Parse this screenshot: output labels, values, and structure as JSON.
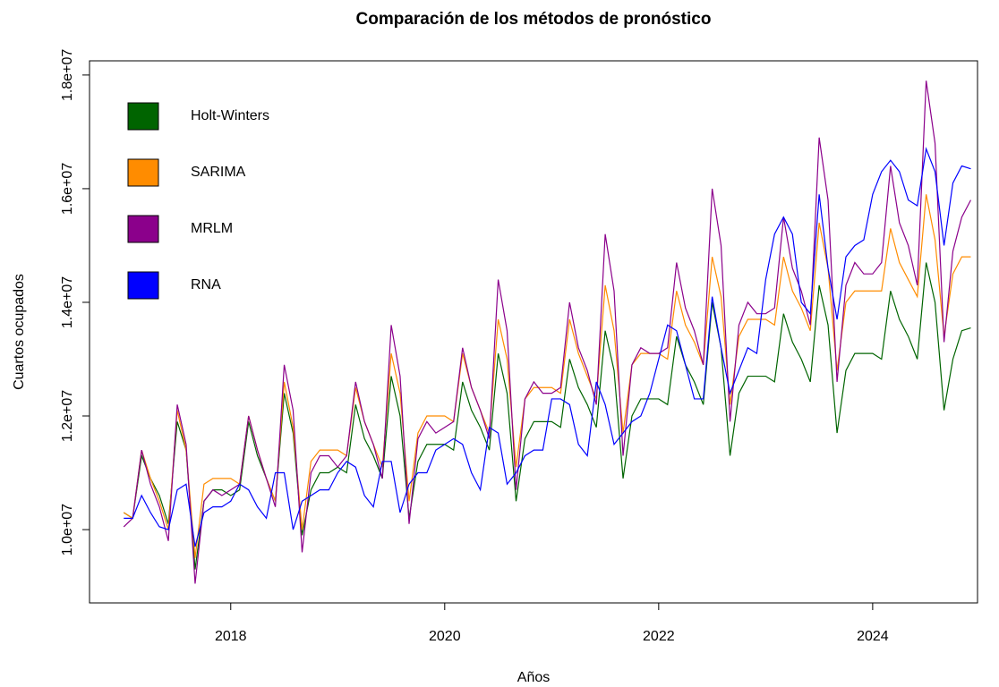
{
  "chart_data": {
    "type": "line",
    "title": "Comparación de los métodos de pronóstico",
    "xlabel": "Años",
    "ylabel": "Cuartos ocupados",
    "legend": "topleft",
    "xlim": [
      2016.68,
      2024.98
    ],
    "ylim": [
      8710000,
      18250000
    ],
    "xticks": [
      2018,
      2020,
      2022,
      2024
    ],
    "yticks": [
      {
        "value": 10000000,
        "label": "1.0e+07"
      },
      {
        "value": 12000000,
        "label": "1.2e+07"
      },
      {
        "value": 14000000,
        "label": "1.4e+07"
      },
      {
        "value": 16000000,
        "label": "1.6e+07"
      },
      {
        "value": 18000000,
        "label": "1.8e+07"
      }
    ],
    "x": [
      2017,
      2017.083,
      2017.167,
      2017.25,
      2017.333,
      2017.417,
      2017.5,
      2017.583,
      2017.667,
      2017.75,
      2017.833,
      2017.917,
      2018,
      2018.083,
      2018.167,
      2018.25,
      2018.333,
      2018.417,
      2018.5,
      2018.583,
      2018.667,
      2018.75,
      2018.833,
      2018.917,
      2019,
      2019.083,
      2019.167,
      2019.25,
      2019.333,
      2019.417,
      2019.5,
      2019.583,
      2019.667,
      2019.75,
      2019.833,
      2019.917,
      2020,
      2020.083,
      2020.167,
      2020.25,
      2020.333,
      2020.417,
      2020.5,
      2020.583,
      2020.667,
      2020.75,
      2020.833,
      2020.917,
      2021,
      2021.083,
      2021.167,
      2021.25,
      2021.333,
      2021.417,
      2021.5,
      2021.583,
      2021.667,
      2021.75,
      2021.833,
      2021.917,
      2022,
      2022.083,
      2022.167,
      2022.25,
      2022.333,
      2022.417,
      2022.5,
      2022.583,
      2022.667,
      2022.75,
      2022.833,
      2022.917,
      2023,
      2023.083,
      2023.167,
      2023.25,
      2023.333,
      2023.417,
      2023.5,
      2023.583,
      2023.667,
      2023.75,
      2023.833,
      2023.917,
      2024,
      2024.083,
      2024.167,
      2024.25,
      2024.333,
      2024.417,
      2024.5,
      2024.583,
      2024.667,
      2024.75,
      2024.833,
      2024.917
    ],
    "series": [
      {
        "name": "Holt-Winters",
        "color": "#006400",
        "values": [
          10300000.0,
          10200000.0,
          11300000.0,
          10900000.0,
          10600000.0,
          10100000.0,
          11900000.0,
          11400000.0,
          9300000.0,
          10500000.0,
          10700000.0,
          10700000.0,
          10600000.0,
          10700000.0,
          11900000.0,
          11300000.0,
          10900000.0,
          10500000.0,
          12400000.0,
          11700000.0,
          9900000.0,
          10700000.0,
          11000000.0,
          11000000.0,
          11100000.0,
          11000000.0,
          12200000.0,
          11600000.0,
          11300000.0,
          10900000.0,
          12700000.0,
          12000000.0,
          10200000.0,
          11200000.0,
          11500000.0,
          11500000.0,
          11500000.0,
          11400000.0,
          12600000.0,
          12100000.0,
          11800000.0,
          11400000.0,
          13100000.0,
          12400000.0,
          10500000.0,
          11600000.0,
          11900000.0,
          11900000.0,
          11900000.0,
          11800000.0,
          13000000.0,
          12500000.0,
          12200000.0,
          11800000.0,
          13500000.0,
          12800000.0,
          10900000.0,
          12000000.0,
          12300000.0,
          12300000.0,
          12300000.0,
          12200000.0,
          13400000.0,
          12900000.0,
          12600000.0,
          12200000.0,
          14000000.0,
          13200000.0,
          11300000.0,
          12400000.0,
          12700000.0,
          12700000.0,
          12700000.0,
          12600000.0,
          13800000.0,
          13300000.0,
          13000000.0,
          12600000.0,
          14300000.0,
          13600000.0,
          11700000.0,
          12800000.0,
          13100000.0,
          13100000.0,
          13100000.0,
          13000000.0,
          14200000.0,
          13700000.0,
          13400000.0,
          13000000.0,
          14700000.0,
          14000000.0,
          12100000.0,
          13000000.0,
          13500000.0,
          13550000.0
        ]
      },
      {
        "name": "SARIMA",
        "color": "#ff8c00",
        "values": [
          10300000.0,
          10200000.0,
          11400000.0,
          10900000.0,
          10500000.0,
          10000000.0,
          12100000.0,
          11400000.0,
          9500000.0,
          10800000.0,
          10900000.0,
          10900000.0,
          10900000.0,
          10800000.0,
          12000000.0,
          11400000.0,
          10900000.0,
          10500000.0,
          12600000.0,
          11800000.0,
          10000000.0,
          11200000.0,
          11400000.0,
          11400000.0,
          11400000.0,
          11300000.0,
          12500000.0,
          11900000.0,
          11500000.0,
          11100000.0,
          13100000.0,
          12400000.0,
          10500000.0,
          11700000.0,
          12000000.0,
          12000000.0,
          12000000.0,
          11900000.0,
          13100000.0,
          12500000.0,
          12100000.0,
          11700000.0,
          13700000.0,
          13000000.0,
          11100000.0,
          12300000.0,
          12500000.0,
          12500000.0,
          12500000.0,
          12400000.0,
          13700000.0,
          13100000.0,
          12700000.0,
          12300000.0,
          14300000.0,
          13500000.0,
          11700000.0,
          12900000.0,
          13100000.0,
          13100000.0,
          13100000.0,
          13000000.0,
          14200000.0,
          13600000.0,
          13300000.0,
          12900000.0,
          14800000.0,
          14100000.0,
          12200000.0,
          13400000.0,
          13700000.0,
          13700000.0,
          13700000.0,
          13600000.0,
          14800000.0,
          14200000.0,
          13900000.0,
          13500000.0,
          15400000.0,
          14600000.0,
          12800000.0,
          14000000.0,
          14200000.0,
          14200000.0,
          14200000.0,
          14200000.0,
          15300000.0,
          14700000.0,
          14400000.0,
          14100000.0,
          15900000.0,
          15100000.0,
          13400000.0,
          14500000.0,
          14800000.0,
          14800000.0
        ]
      },
      {
        "name": "MRLM",
        "color": "#8b008b",
        "values": [
          10050000.0,
          10200000.0,
          11400000.0,
          10800000.0,
          10400000.0,
          9800000.0,
          12200000.0,
          11500000.0,
          9050000.0,
          10500000.0,
          10700000.0,
          10600000.0,
          10700000.0,
          10800000.0,
          12000000.0,
          11400000.0,
          10900000.0,
          10400000.0,
          12900000.0,
          12100000.0,
          9600000.0,
          11000000.0,
          11300000.0,
          11300000.0,
          11100000.0,
          11300000.0,
          12600000.0,
          11900000.0,
          11500000.0,
          10900000.0,
          13600000.0,
          12700000.0,
          10100000.0,
          11600000.0,
          11900000.0,
          11700000.0,
          11800000.0,
          11900000.0,
          13200000.0,
          12500000.0,
          12100000.0,
          11600000.0,
          14400000.0,
          13500000.0,
          10700000.0,
          12300000.0,
          12600000.0,
          12400000.0,
          12400000.0,
          12500000.0,
          14000000.0,
          13200000.0,
          12800000.0,
          12200000.0,
          15200000.0,
          14200000.0,
          11300000.0,
          12900000.0,
          13200000.0,
          13100000.0,
          13100000.0,
          13200000.0,
          14700000.0,
          13900000.0,
          13500000.0,
          12900000.0,
          16000000.0,
          15000000.0,
          11900000.0,
          13600000.0,
          14000000.0,
          13800000.0,
          13800000.0,
          13900000.0,
          15500000.0,
          14600000.0,
          14200000.0,
          13600000.0,
          16900000.0,
          15800000.0,
          12600000.0,
          14300000.0,
          14700000.0,
          14500000.0,
          14500000.0,
          14700000.0,
          16400000.0,
          15400000.0,
          15000000.0,
          14300000.0,
          17900000.0,
          16800000.0,
          13300000.0,
          14900000.0,
          15500000.0,
          15800000.0
        ]
      },
      {
        "name": "RNA",
        "color": "#0000ff",
        "values": [
          10200000.0,
          10200000.0,
          10600000.0,
          10300000.0,
          10050000.0,
          10000000.0,
          10700000.0,
          10800000.0,
          9700000.0,
          10300000.0,
          10400000.0,
          10400000.0,
          10500000.0,
          10800000.0,
          10700000.0,
          10400000.0,
          10200000.0,
          11000000.0,
          11000000.0,
          10000000.0,
          10500000.0,
          10600000.0,
          10700000.0,
          10700000.0,
          11000000.0,
          11200000.0,
          11100000.0,
          10600000.0,
          10400000.0,
          11200000.0,
          11200000.0,
          10300000.0,
          10800000.0,
          11000000.0,
          11000000.0,
          11400000.0,
          11500000.0,
          11600000.0,
          11500000.0,
          11000000.0,
          10700000.0,
          11800000.0,
          11700000.0,
          10800000.0,
          11000000.0,
          11300000.0,
          11400000.0,
          11400000.0,
          12300000.0,
          12300000.0,
          12200000.0,
          11500000.0,
          11300000.0,
          12600000.0,
          12200000.0,
          11500000.0,
          11700000.0,
          11900000.0,
          12000000.0,
          12400000.0,
          13000000.0,
          13600000.0,
          13500000.0,
          12900000.0,
          12300000.0,
          12300000.0,
          14100000.0,
          13200000.0,
          12400000.0,
          12800000.0,
          13200000.0,
          13100000.0,
          14400000.0,
          15200000.0,
          15500000.0,
          15200000.0,
          14000000.0,
          13800000.0,
          15900000.0,
          14600000.0,
          13700000.0,
          14800000.0,
          15000000.0,
          15100000.0,
          15900000.0,
          16300000.0,
          16500000.0,
          16300000.0,
          15800000.0,
          15700000.0,
          16700000.0,
          16300000.0,
          15000000.0,
          16100000.0,
          16400000.0,
          16350000.0
        ]
      }
    ]
  }
}
